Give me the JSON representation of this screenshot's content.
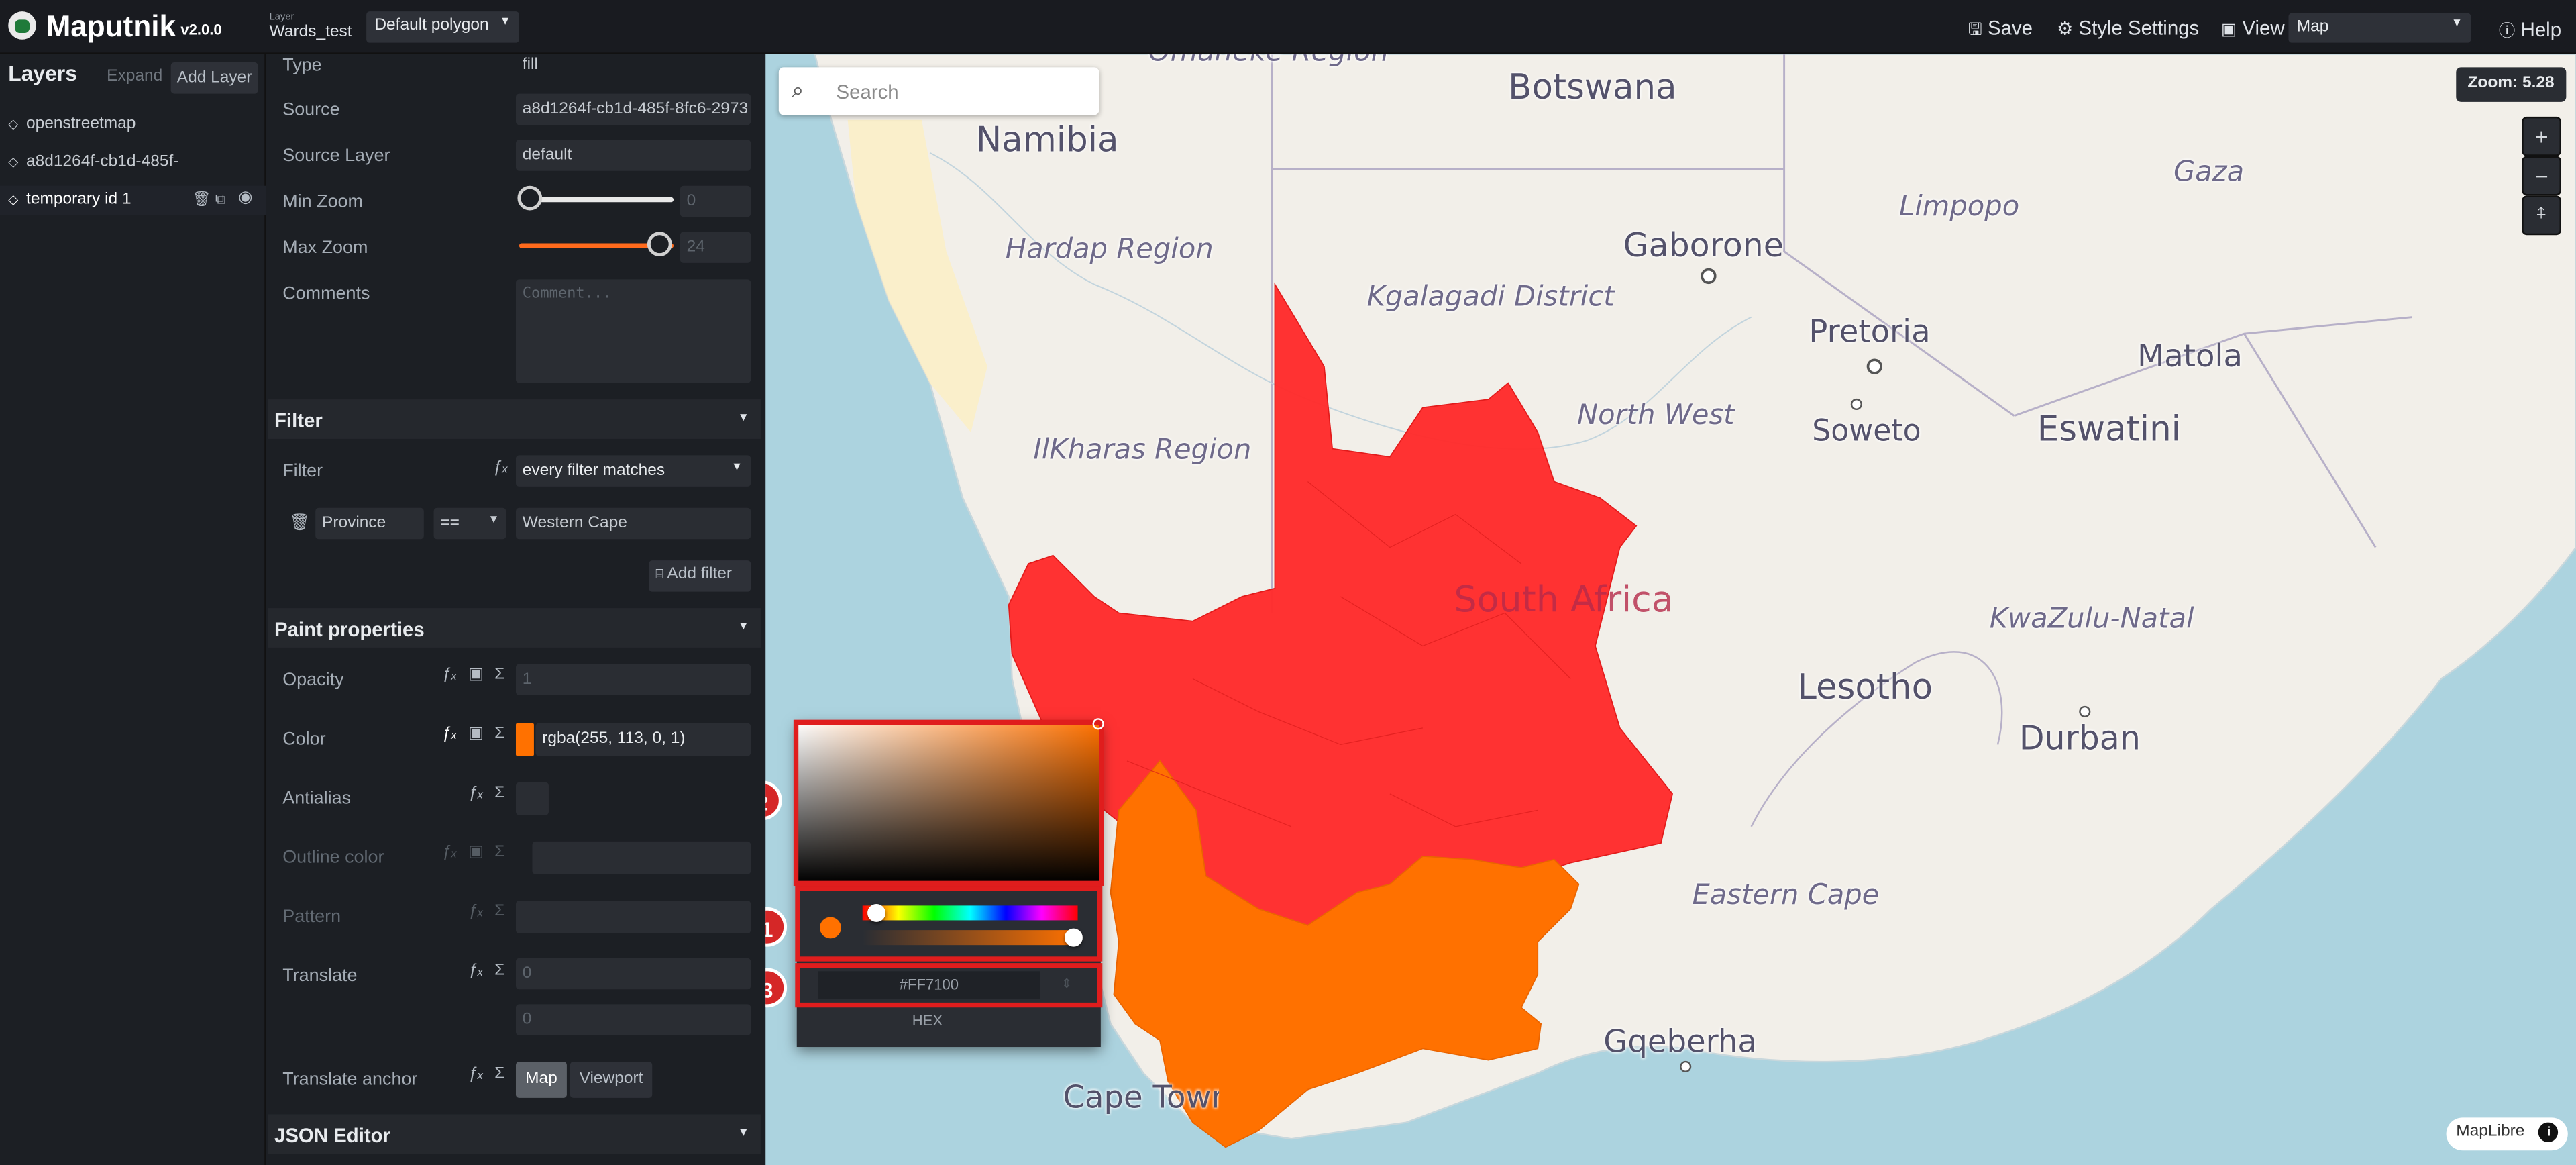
{
  "app": {
    "name": "Maputnik",
    "version": "v2.0.0"
  },
  "toolbar": {
    "layer_caption": "Layer",
    "layer_name": "Wards_test",
    "style_select": "Default polygon",
    "save_label": "Save",
    "style_settings_label": "Style Settings",
    "view_label": "View",
    "view_select": "Map",
    "help_label": "Help"
  },
  "layers_panel": {
    "title": "Layers",
    "expand_label": "Expand",
    "add_layer_label": "Add Layer",
    "items": [
      {
        "label": "openstreetmap"
      },
      {
        "label": "a8d1264f-cb1d-485f-"
      },
      {
        "label": "temporary id 1"
      }
    ]
  },
  "editor": {
    "type_label": "Type",
    "type_value": "fill",
    "source_label": "Source",
    "source_value": "a8d1264f-cb1d-485f-8fc6-2973",
    "source_layer_label": "Source Layer",
    "source_layer_value": "default",
    "min_zoom_label": "Min Zoom",
    "min_zoom_value": "0",
    "min_zoom_slider": 0,
    "max_zoom_label": "Max Zoom",
    "max_zoom_value": "24",
    "max_zoom_slider": 1,
    "comments_label": "Comments",
    "comments_placeholder": "Comment...",
    "filter_section": "Filter",
    "filter_label": "Filter",
    "filter_mode": "every filter matches",
    "filter_field": "Province",
    "filter_op": "==",
    "filter_value": "Western Cape",
    "add_filter_label": "Add filter",
    "paint_section": "Paint properties",
    "opacity_label": "Opacity",
    "opacity_value": "1",
    "color_label": "Color",
    "color_value": "rgba(255, 113, 0, 1)",
    "color_swatch": "#ff7100",
    "antialias_label": "Antialias",
    "outline_color_label": "Outline color",
    "pattern_label": "Pattern",
    "translate_label": "Translate",
    "translate_x": "0",
    "translate_y": "0",
    "translate_anchor_label": "Translate anchor",
    "anchor_map": "Map",
    "anchor_viewport": "Viewport",
    "json_section": "JSON Editor"
  },
  "icons": {
    "function": "function-icon",
    "data": "data-function-icon",
    "sigma": "expression-icon",
    "trash": "trash-icon",
    "copy": "copy-icon",
    "eye": "eye-icon",
    "layer": "layer-icon"
  },
  "map": {
    "search_placeholder": "Search",
    "zoom_label": "Zoom: 5.28",
    "attribution": "MapLibre",
    "places": [
      {
        "text": "Omaheke Region"
      },
      {
        "text": "Botswana"
      },
      {
        "text": "Namibia"
      },
      {
        "text": "Gaza"
      },
      {
        "text": "Limpopo"
      },
      {
        "text": "Hardap Region"
      },
      {
        "text": "Gaborone"
      },
      {
        "text": "Kgalagadi District"
      },
      {
        "text": "Pretoria"
      },
      {
        "text": "Matola"
      },
      {
        "text": "Soweto"
      },
      {
        "text": "Eswatini"
      },
      {
        "text": "North West"
      },
      {
        "text": "IlKharas Region"
      },
      {
        "text": "South Africa"
      },
      {
        "text": "KwaZulu-Natal"
      },
      {
        "text": "Lesotho"
      },
      {
        "text": "Durban"
      },
      {
        "text": "Eastern Cape"
      },
      {
        "text": "Gqeberha"
      },
      {
        "text": "Cape Town"
      }
    ]
  },
  "color_picker": {
    "hex_value": "#FF7100",
    "format_label": "HEX",
    "current_color": "#ff7100",
    "hue_position": 0.07,
    "alpha_position": 1,
    "badges": [
      "1",
      "2",
      "3"
    ]
  },
  "colors": {
    "accent": "#ff6a00",
    "highlight": "#d52727",
    "province_fill": "#ff2b2b",
    "western_cape_fill": "#ff7100"
  }
}
